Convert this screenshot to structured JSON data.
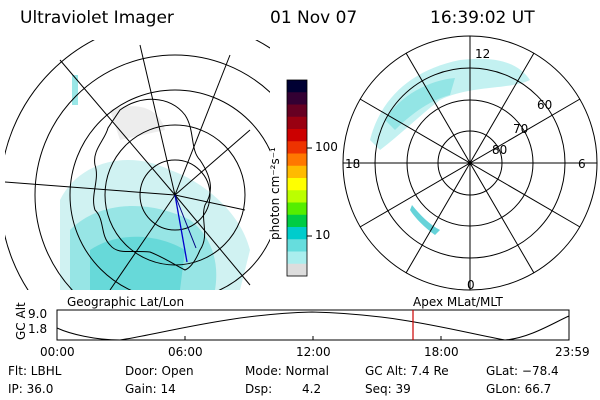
{
  "header": {
    "instrument": "Ultraviolet Imager",
    "date": "01 Nov 07",
    "time": "16:39:02 UT"
  },
  "colorbar": {
    "label": "photon cm⁻²s⁻¹",
    "ticks": [
      "100",
      "10"
    ],
    "colors": [
      "#000033",
      "#330033",
      "#660022",
      "#990011",
      "#cc0000",
      "#ee3300",
      "#ff7700",
      "#ffbb00",
      "#ffff00",
      "#bbff00",
      "#55ee00",
      "#00cc44",
      "#00cccc",
      "#66dddd",
      "#aaeeee",
      "#dddddd"
    ]
  },
  "right_dial": {
    "hour_labels": {
      "top": "12",
      "left": "18",
      "right": "6",
      "bottom": "0"
    },
    "lat_labels": [
      "60",
      "70",
      "80"
    ]
  },
  "map_labels": {
    "left": "Geographic Lat/Lon",
    "right": "Apex MLat/MLT"
  },
  "timeline": {
    "ylabel": "GC Alt",
    "y_ticks": [
      "9.0",
      "1.8"
    ],
    "x_ticks": [
      "00:00",
      "06:00",
      "12:00",
      "18:00",
      "23:59"
    ],
    "marker_color": "#cc0000"
  },
  "status": {
    "filter": "Flt: LBHL",
    "door": "Door: Open",
    "mode": "Mode: Normal",
    "gc_alt": "GC Alt: 7.4 Re",
    "glat": "GLat: −78.4",
    "ip": "IP: 36.0",
    "gain": "Gain: 14",
    "dsp_label": "Dsp:",
    "dsp_value": "4.2",
    "seq": "Seq: 39",
    "glon": "GLon:  66.7"
  }
}
